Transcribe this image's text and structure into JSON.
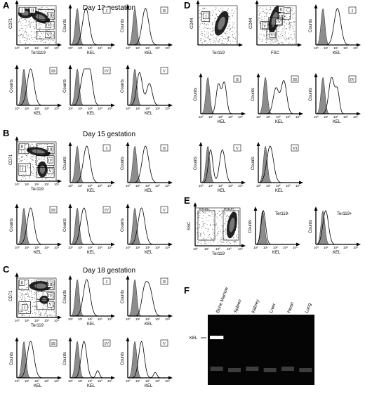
{
  "colors": {
    "fill": "#8c8c8c",
    "line": "#000000",
    "gel_bg": "#050505",
    "band": "#ffffff"
  },
  "panels": {
    "A": {
      "letter": "A",
      "title": "Day 13 gestation"
    },
    "B": {
      "letter": "B",
      "title": "Day 15 gestation"
    },
    "C": {
      "letter": "C",
      "title": "Day 18 gestation"
    },
    "D": {
      "letter": "D"
    },
    "E": {
      "letter": "E"
    },
    "F": {
      "letter": "F"
    }
  },
  "labels": {
    "counts": "Counts",
    "kel": "KEL",
    "ter119": "Ter119",
    "ter119_panelA": "Ter1119",
    "cd71": "CD71",
    "cd44": "CD44",
    "fsc": "FSC",
    "ssc": "SSC",
    "ter119_neg": "Ter119-",
    "ter119_pos": "Ter119+",
    "gel_kel": "KEL"
  },
  "ticks": [
    "10⁰",
    "10¹",
    "10²",
    "10³",
    "10⁴"
  ],
  "gates": [
    "I",
    "II",
    "III",
    "IV",
    "V",
    "VI"
  ],
  "gel_lanes": [
    "Bone Marrow",
    "Spleen",
    "Kidney",
    "Liver",
    "Heart",
    "Lung"
  ]
}
